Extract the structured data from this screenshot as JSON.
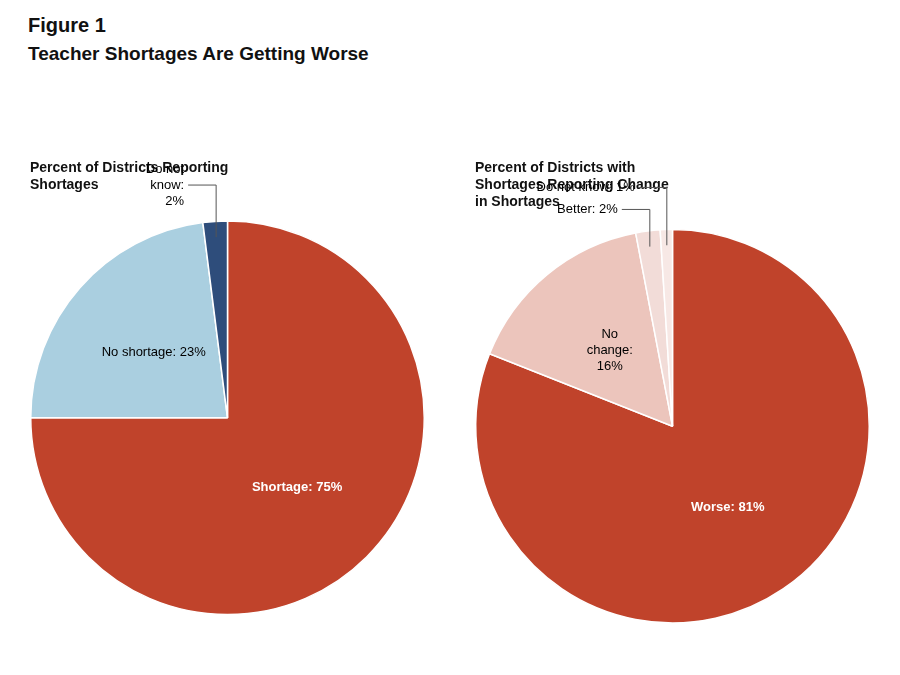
{
  "title": "Figure 1",
  "subtitle": "Teacher Shortages Are Getting Worse",
  "chart_data": [
    {
      "type": "pie",
      "title": "Percent of Districts Reporting\nShortages",
      "values": [
        75,
        23,
        2
      ],
      "value_labels": [
        "Shortage: 75%",
        "No shortage: 23%",
        "Do not\nknow:\n2%"
      ],
      "colors": [
        "#c0432b",
        "#aacfe0",
        "#2e4d7b"
      ],
      "data_labels": true
    },
    {
      "type": "pie",
      "title": "Percent of Districts with\nShortages Reporting Change\nin Shortages",
      "values": [
        81,
        16,
        2,
        1
      ],
      "value_labels": [
        "Worse: 81%",
        "No\nchange:\n16%",
        "Better: 2%",
        "Do not know: 1%"
      ],
      "colors": [
        "#c0432b",
        "#ecc5bc",
        "#f2dcd8",
        "#f7e8e5"
      ],
      "data_labels": true
    }
  ]
}
